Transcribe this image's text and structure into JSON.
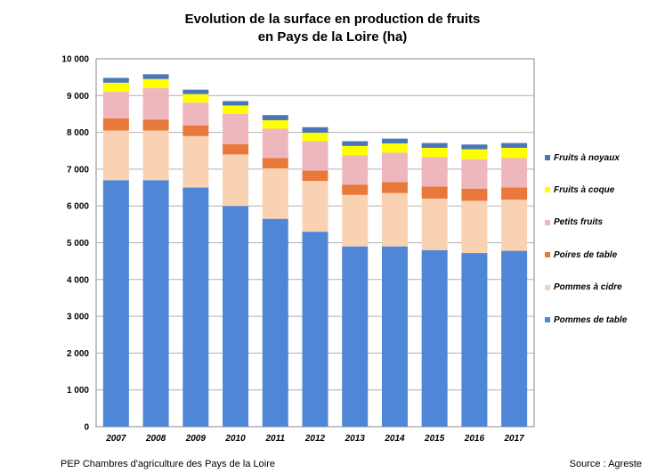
{
  "title_line1": "Evolution de la surface en production de fruits",
  "title_line2": "en Pays de la Loire  (ha)",
  "footer_left": "PEP Chambres d'agriculture des Pays de la Loire",
  "footer_right": "Source : Agreste",
  "chart_data": {
    "type": "bar",
    "stacked": true,
    "categories": [
      "2007",
      "2008",
      "2009",
      "2010",
      "2011",
      "2012",
      "2013",
      "2014",
      "2015",
      "2016",
      "2017"
    ],
    "ylim": [
      0,
      10000
    ],
    "yticks": [
      0,
      1000,
      2000,
      3000,
      4000,
      5000,
      6000,
      7000,
      8000,
      9000,
      10000
    ],
    "ytick_labels": [
      "0",
      "1 000",
      "2 000",
      "3 000",
      "4 000",
      "5 000",
      "6 000",
      "7 000",
      "8 000",
      "9 000",
      "10 000"
    ],
    "grid": true,
    "legend_position": "right",
    "series": [
      {
        "name": "Pommes de table",
        "color": "#4f86d6",
        "values": [
          6700,
          6700,
          6500,
          6000,
          5650,
          5300,
          4900,
          4900,
          4800,
          4720,
          4780
        ]
      },
      {
        "name": "Pommes à cidre",
        "color": "#f9d2b4",
        "values": [
          1350,
          1350,
          1400,
          1400,
          1370,
          1380,
          1400,
          1450,
          1400,
          1420,
          1390
        ]
      },
      {
        "name": "Poires de table",
        "color": "#e8793a",
        "values": [
          330,
          300,
          290,
          280,
          280,
          280,
          280,
          300,
          330,
          330,
          330
        ]
      },
      {
        "name": "Petits fruits",
        "color": "#eeb6bd",
        "values": [
          720,
          850,
          620,
          820,
          800,
          800,
          800,
          800,
          800,
          800,
          800
        ]
      },
      {
        "name": "Fruits à coque",
        "color": "#ffff00",
        "values": [
          250,
          250,
          230,
          230,
          230,
          230,
          250,
          250,
          250,
          270,
          280
        ]
      },
      {
        "name": "Fruits à noyaux",
        "color": "#4a76b8",
        "values": [
          130,
          130,
          120,
          120,
          140,
          150,
          130,
          130,
          130,
          130,
          130
        ]
      }
    ]
  }
}
